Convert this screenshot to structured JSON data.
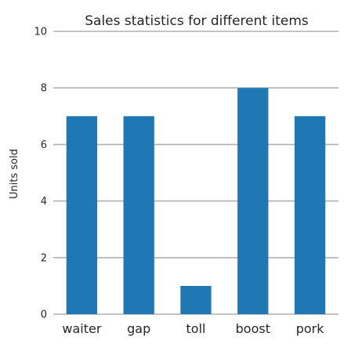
{
  "chart_data": {
    "type": "bar",
    "title": "Sales statistics for different items",
    "xlabel": "",
    "ylabel": "Units sold",
    "categories": [
      "waiter",
      "gap",
      "toll",
      "boost",
      "pork"
    ],
    "values": [
      7,
      7,
      1,
      8,
      7
    ],
    "ylim": [
      0,
      10
    ],
    "yticks": [
      "0",
      "2",
      "4",
      "6",
      "8",
      "10"
    ],
    "grid": true,
    "bar_color": "#1f77b4"
  }
}
